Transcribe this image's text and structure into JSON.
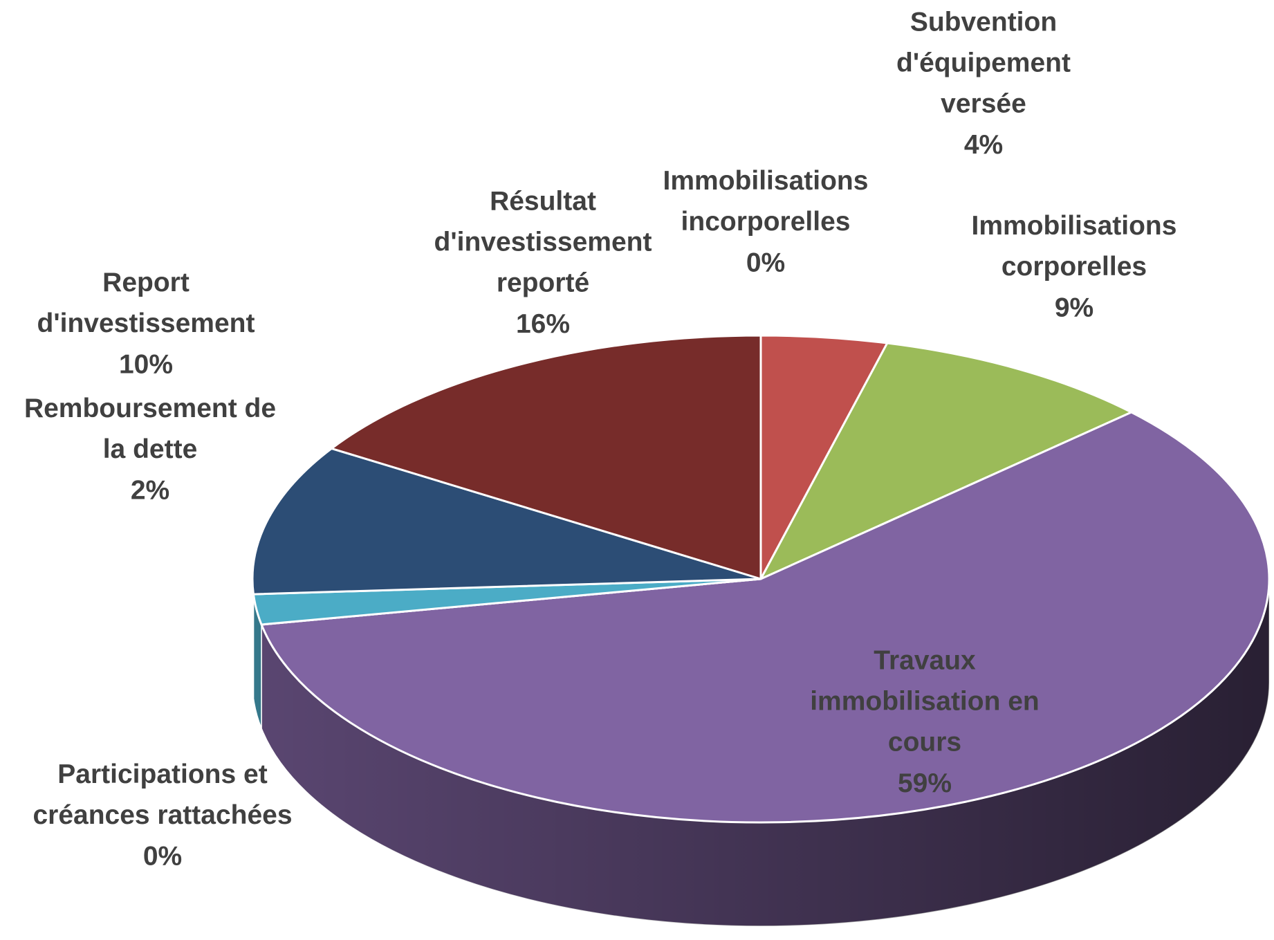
{
  "chart_data": {
    "type": "pie3d",
    "categories": [
      "Immobilisations incorporelles",
      "Subvention d'équipement versée",
      "Immobilisations corporelles",
      "Travaux immobilisation en cours",
      "Participations et créances rattachées",
      "Remboursement de la dette",
      "Report d'investissement",
      "Résultat d'investissement reporté"
    ],
    "values": [
      0,
      4,
      9,
      59,
      0,
      2,
      10,
      16
    ],
    "value_labels": [
      "0%",
      "4%",
      "9%",
      "59%",
      "0%",
      "2%",
      "10%",
      "16%"
    ],
    "colors": [
      "#4472c4",
      "#c0504d",
      "#9bbb59",
      "#8064a2",
      "#1f4e5a",
      "#4bacc6",
      "#2c4d75",
      "#772c2a"
    ]
  }
}
